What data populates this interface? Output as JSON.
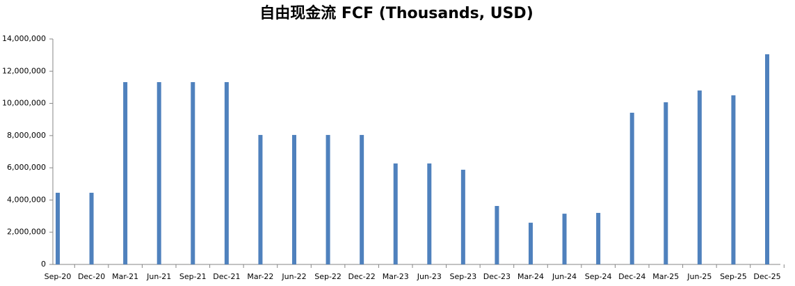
{
  "chart_data": {
    "type": "bar",
    "title": "自由现金流 FCF (Thousands, USD)",
    "categories": [
      "Sep-20",
      "Dec-20",
      "Mar-21",
      "Jun-21",
      "Sep-21",
      "Dec-21",
      "Mar-22",
      "Jun-22",
      "Sep-22",
      "Dec-22",
      "Mar-23",
      "Jun-23",
      "Sep-23",
      "Dec-23",
      "Mar-24",
      "Jun-24",
      "Sep-24",
      "Dec-24",
      "Mar-25",
      "Jun-25",
      "Sep-25",
      "Dec-25"
    ],
    "values": [
      4450000,
      4450000,
      11320000,
      11320000,
      11320000,
      11320000,
      8040000,
      8040000,
      8040000,
      8040000,
      6270000,
      6270000,
      5880000,
      3630000,
      2590000,
      3150000,
      3200000,
      9420000,
      10070000,
      10800000,
      10500000,
      13050000
    ],
    "color": "#4f81bd",
    "ylim": [
      0,
      14000000
    ],
    "yticks": [
      0,
      {
        "value": 2000000,
        "label": "2,000,000"
      },
      {
        "value": 4000000,
        "label": "4,000,000"
      },
      {
        "value": 6000000,
        "label": "6,000,000"
      },
      {
        "value": 8000000,
        "label": "8,000,000"
      },
      {
        "value": 10000000,
        "label": "10,000,000"
      },
      {
        "value": 12000000,
        "label": "12,000,000"
      },
      {
        "value": 14000000,
        "label": "14,000,000"
      }
    ],
    "grid": false
  }
}
